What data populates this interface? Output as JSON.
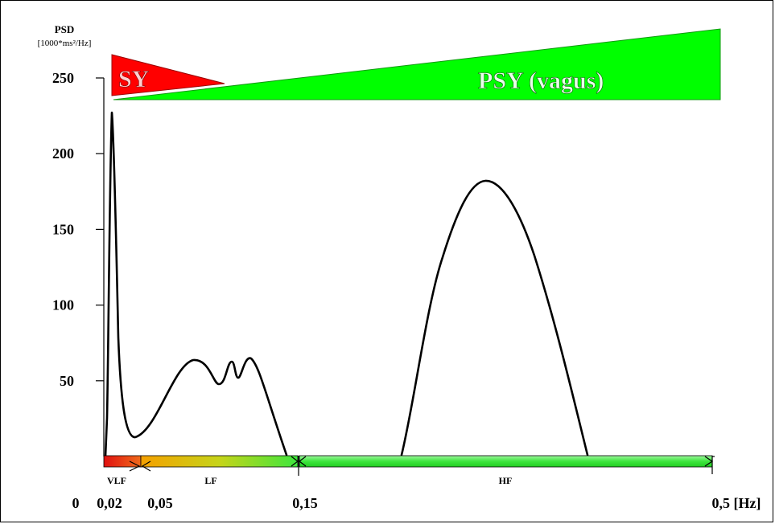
{
  "chart_data": {
    "type": "line",
    "ylabel": "PSD",
    "yunit": "[1000*ms²/Hz]",
    "y_ticks": [
      "50",
      "100",
      "150",
      "200",
      "250"
    ],
    "ylim": [
      0,
      250
    ],
    "x_tick_labels": [
      "0",
      "0,02",
      "0,05",
      "0,15",
      "0,5 [Hz]"
    ],
    "bands": [
      {
        "label": "VLF",
        "from": "0,02",
        "to": "0,05"
      },
      {
        "label": "LF",
        "from": "0,05",
        "to": "0,15"
      },
      {
        "label": "HF",
        "from": "0,15",
        "to": "0,5"
      }
    ],
    "annotations": {
      "sympathetic": "SY",
      "parasympathetic": "PSY (vagus)"
    },
    "peaks": [
      {
        "band": "VLF",
        "psd": 217
      },
      {
        "band": "LF",
        "psd": 59
      },
      {
        "band": "LF",
        "psd": 59
      },
      {
        "band": "LF",
        "psd": 61
      },
      {
        "band": "HF",
        "psd": 173
      }
    ],
    "colors": {
      "sy": "#ff0000",
      "psy": "#00ff00",
      "curve": "#000000",
      "vlf_start": "#e8141a",
      "lf_start": "#f5a300",
      "bar_green": "#3ee63e"
    }
  }
}
